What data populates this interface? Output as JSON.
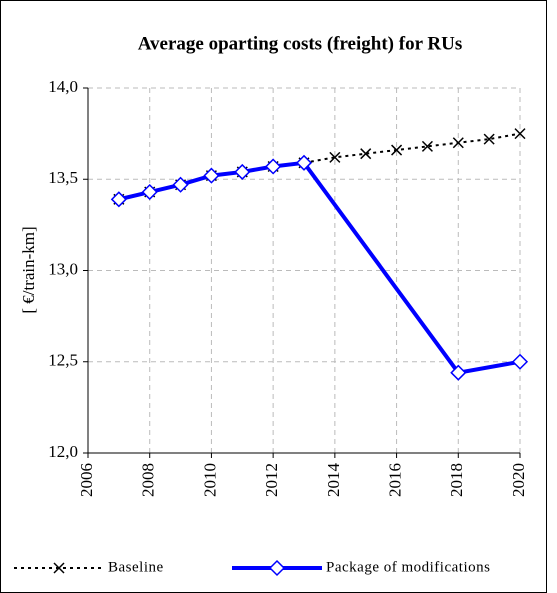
{
  "chart_data": {
    "type": "line",
    "title": "Average oparting costs (freight) for RUs",
    "y_label": "[ €/train-km]",
    "xlim": [
      2006,
      2020
    ],
    "xticks": [
      2006,
      2008,
      2010,
      2012,
      2014,
      2016,
      2018,
      2020
    ],
    "ylim": [
      12,
      14
    ],
    "yticks": [
      {
        "value": 12,
        "label": "12,0"
      },
      {
        "value": 12.5,
        "label": "12,5"
      },
      {
        "value": 13,
        "label": "13,0"
      },
      {
        "value": 13.5,
        "label": "13,5"
      },
      {
        "value": 14,
        "label": "14,0"
      }
    ],
    "grid": true,
    "legend": "bottom",
    "series": [
      {
        "name": "Baseline",
        "color": "#000000",
        "style": "dotted",
        "marker": "x",
        "x": [
          2007,
          2008,
          2009,
          2010,
          2011,
          2012,
          2013,
          2014,
          2015,
          2016,
          2017,
          2018,
          2019,
          2020
        ],
        "values": [
          13.39,
          13.43,
          13.47,
          13.52,
          13.54,
          13.57,
          13.59,
          13.62,
          13.64,
          13.66,
          13.68,
          13.7,
          13.72,
          13.75
        ]
      },
      {
        "name": "Package of modifications",
        "color": "#0000ff",
        "style": "solid",
        "marker": "diamond",
        "x": [
          2007,
          2008,
          2009,
          2010,
          2011,
          2012,
          2013,
          2018,
          2020
        ],
        "values": [
          13.39,
          13.43,
          13.47,
          13.52,
          13.54,
          13.57,
          13.59,
          12.44,
          12.5
        ]
      }
    ]
  }
}
